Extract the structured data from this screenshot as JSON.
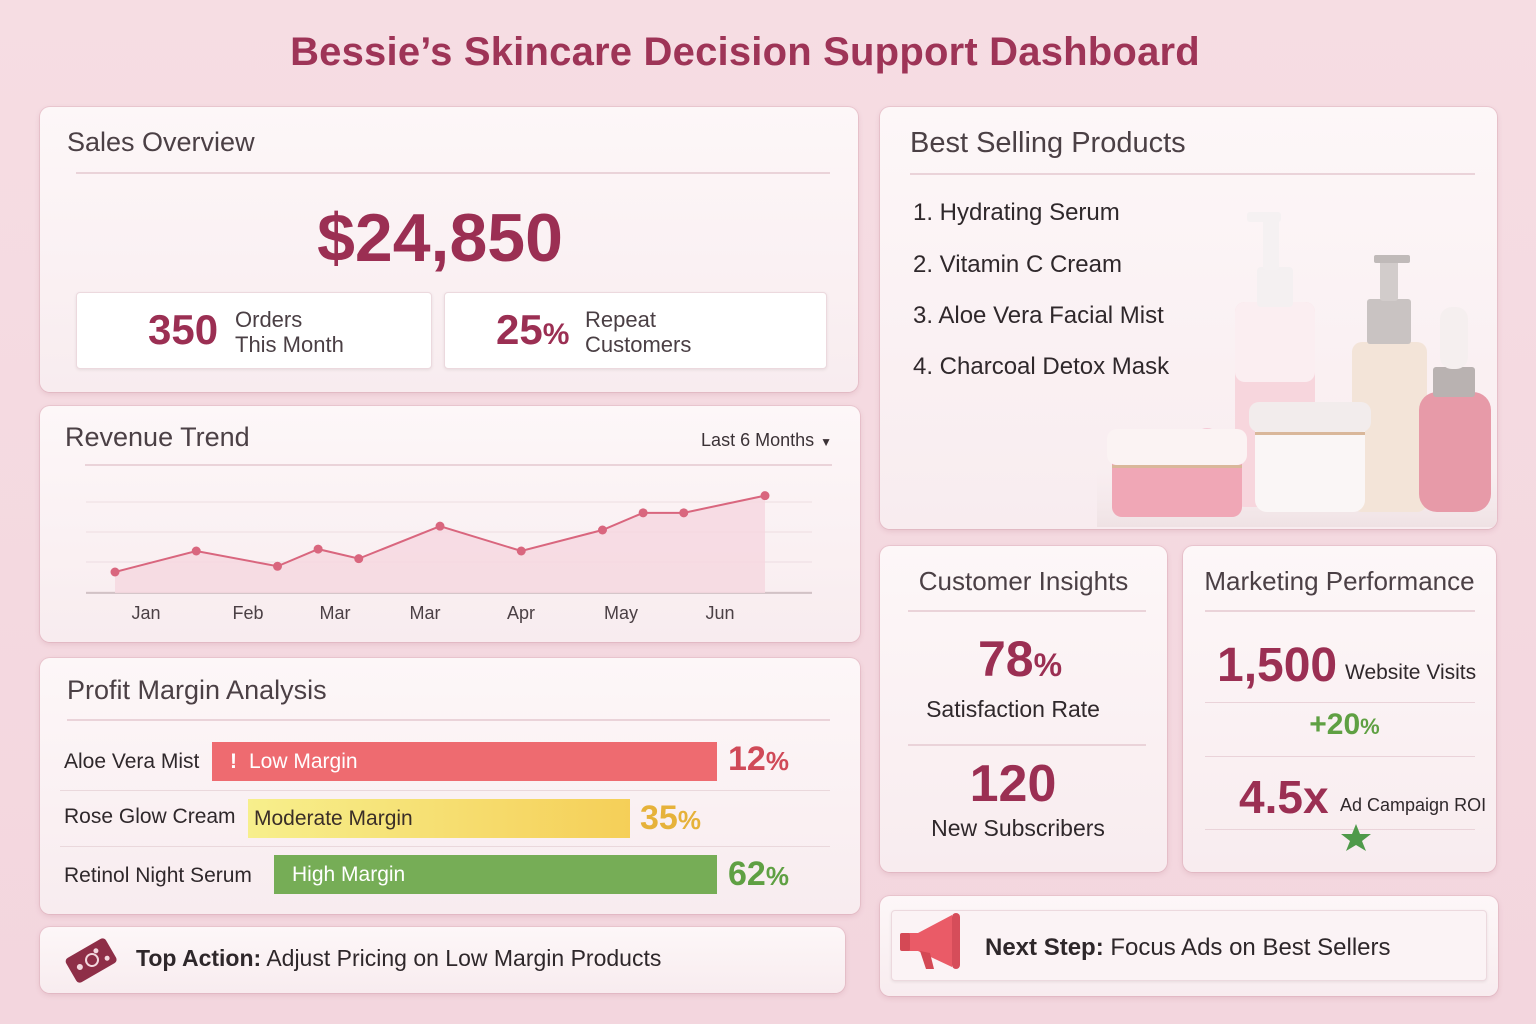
{
  "title": "Bessie’s Skincare Decision Support Dashboard",
  "sales": {
    "title": "Sales Overview",
    "revenue": "$24,850",
    "orders_value": "350",
    "orders_label_1": "Orders",
    "orders_label_2": "This Month",
    "repeat_value": "25",
    "repeat_unit": "%",
    "repeat_label_1": "Repeat",
    "repeat_label_2": "Customers"
  },
  "trend": {
    "title": "Revenue Trend",
    "range_label": "Last 6 Months"
  },
  "chart_data": {
    "type": "area",
    "categories": [
      "Jan",
      "Feb",
      "Mar",
      "Mar",
      "Apr",
      "May",
      "Jun"
    ],
    "x": [
      0,
      1,
      2,
      2.5,
      3,
      4,
      5,
      6,
      6.5,
      7,
      8
    ],
    "values": [
      1.1,
      2.2,
      1.4,
      2.3,
      1.8,
      3.5,
      2.2,
      3.3,
      4.2,
      4.2,
      5.1
    ],
    "ylim": [
      0,
      5.5
    ],
    "grid": true,
    "fill_color": "#f6d8e0",
    "line_color": "#d9667e"
  },
  "profit": {
    "title": "Profit Margin Analysis",
    "rows": [
      {
        "product": "Aloe Vera Mist",
        "band": "Low Margin",
        "value": "12",
        "unit": "%",
        "color": "#ee6b70",
        "text_color": "#d04a58",
        "fraction": 0.12
      },
      {
        "product": "Rose Glow Cream",
        "band": "Moderate Margin",
        "value": "35",
        "unit": "%",
        "color": "#f5cf58",
        "text_color": "#e6b23a",
        "fraction": 0.35
      },
      {
        "product": "Retinol Night Serum",
        "band": "High Margin",
        "value": "62",
        "unit": "%",
        "color": "#76ad56",
        "text_color": "#5fa043",
        "fraction": 0.62
      }
    ],
    "alert_glyph": "!"
  },
  "top_action": {
    "label": "Top Action:",
    "text": "Adjust Pricing on Low Margin Products"
  },
  "best": {
    "title": "Best Selling Products",
    "items": [
      "1. Hydrating Serum",
      "2. Vitamin C Cream",
      "3. Aloe Vera Facial Mist",
      "4. Charcoal Detox Mask"
    ]
  },
  "insights": {
    "title": "Customer Insights",
    "satisfaction_value": "78",
    "satisfaction_unit": "%",
    "satisfaction_label": "Satisfaction Rate",
    "subscribers_value": "120",
    "subscribers_label": "New Subscribers"
  },
  "marketing": {
    "title": "Marketing Performance",
    "visits_value": "1,500",
    "visits_label": "Website Visits",
    "growth_value": "+20",
    "growth_unit": "%",
    "roi_value": "4.5x",
    "roi_label": "Ad Campaign ROI"
  },
  "next_step": {
    "label": "Next Step:",
    "text": "Focus Ads on Best Sellers"
  },
  "colors": {
    "brand": "#9b2f53",
    "positive": "#5fa043"
  },
  "icons": {
    "top_action": "price-tag-icon",
    "next_step": "megaphone-icon",
    "roi": "star-icon",
    "dropdown": "caret-down-icon"
  }
}
